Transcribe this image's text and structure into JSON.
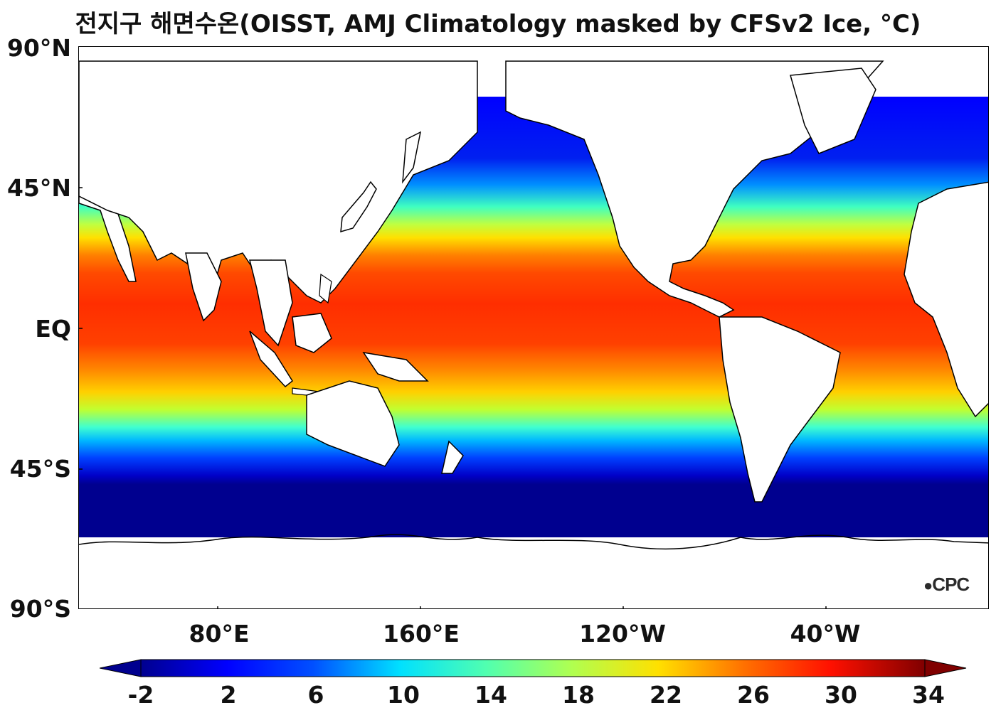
{
  "title": "전지구 해면수온(OISST, AMJ Climatology masked by CFSv2 Ice, °C)",
  "lat_labels": [
    "90°N",
    "45°N",
    "EQ",
    "45°S",
    "90°S"
  ],
  "lon_labels": [
    "80°E",
    "160°E",
    "120°W",
    "40°W"
  ],
  "colorbar": {
    "ticks": [
      "-2",
      "2",
      "6",
      "10",
      "14",
      "18",
      "22",
      "26",
      "30",
      "34"
    ],
    "min": -2,
    "max": 34,
    "extend": "both"
  },
  "watermark": "CPC",
  "map": {
    "projection": "equirectangular",
    "central_longitude": 180,
    "lat_range": [
      -90,
      90
    ],
    "colormap": "jet"
  }
}
